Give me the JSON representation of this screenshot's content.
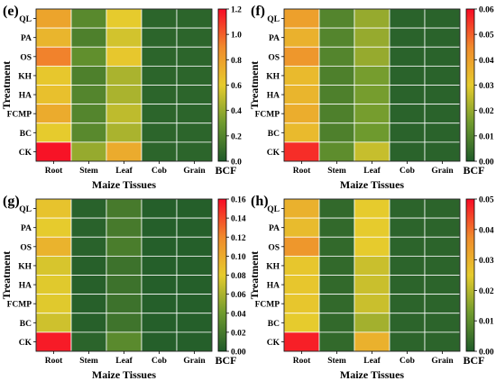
{
  "chart_data": [
    {
      "panel_label": "(e)",
      "type": "heatmap",
      "xlabel": "Maize Tissues",
      "ylabel": "Treatment",
      "x": [
        "Root",
        "Stem",
        "Leaf",
        "Cob",
        "Grain"
      ],
      "y": [
        "QL",
        "PA",
        "OS",
        "KH",
        "HA",
        "FCMP",
        "BC",
        "CK"
      ],
      "values": [
        [
          0.78,
          0.22,
          0.6,
          0.05,
          0.05
        ],
        [
          0.7,
          0.18,
          0.55,
          0.05,
          0.05
        ],
        [
          0.92,
          0.25,
          0.62,
          0.05,
          0.05
        ],
        [
          0.62,
          0.18,
          0.45,
          0.05,
          0.05
        ],
        [
          0.65,
          0.2,
          0.45,
          0.05,
          0.05
        ],
        [
          0.75,
          0.2,
          0.5,
          0.05,
          0.05
        ],
        [
          0.6,
          0.22,
          0.45,
          0.05,
          0.05
        ],
        [
          1.18,
          0.4,
          0.75,
          0.05,
          0.05
        ]
      ],
      "colorbar": {
        "label": "BCF",
        "min": 0.0,
        "max": 1.2,
        "ticks": [
          "0.0",
          "0.2",
          "0.4",
          "0.6",
          "0.8",
          "1.0",
          "1.2"
        ]
      }
    },
    {
      "panel_label": "(f)",
      "type": "heatmap",
      "xlabel": "Maize Tissues",
      "ylabel": "Treatment",
      "x": [
        "Root",
        "Stem",
        "Leaf",
        "Cob",
        "Grain"
      ],
      "y": [
        "QL",
        "PA",
        "OS",
        "KH",
        "HA",
        "FCMP",
        "BC",
        "CK"
      ],
      "values": [
        [
          0.04,
          0.01,
          0.02,
          0.002,
          0.002
        ],
        [
          0.036,
          0.01,
          0.02,
          0.002,
          0.002
        ],
        [
          0.042,
          0.01,
          0.02,
          0.002,
          0.002
        ],
        [
          0.034,
          0.009,
          0.016,
          0.002,
          0.002
        ],
        [
          0.035,
          0.009,
          0.016,
          0.002,
          0.002
        ],
        [
          0.037,
          0.009,
          0.016,
          0.002,
          0.002
        ],
        [
          0.034,
          0.009,
          0.015,
          0.002,
          0.002
        ],
        [
          0.056,
          0.012,
          0.026,
          0.002,
          0.002
        ]
      ],
      "colorbar": {
        "label": "BCF",
        "min": 0.0,
        "max": 0.06,
        "ticks": [
          "0.00",
          "0.01",
          "0.02",
          "0.03",
          "0.04",
          "0.05",
          "0.06"
        ]
      }
    },
    {
      "panel_label": "(g)",
      "type": "heatmap",
      "xlabel": "Maize Tissues",
      "ylabel": "Treatment",
      "x": [
        "Root",
        "Stem",
        "Leaf",
        "Cob",
        "Grain"
      ],
      "y": [
        "QL",
        "PA",
        "OS",
        "KH",
        "HA",
        "FCMP",
        "BC",
        "CK"
      ],
      "values": [
        [
          0.085,
          0.005,
          0.02,
          0.003,
          0.003
        ],
        [
          0.08,
          0.005,
          0.02,
          0.003,
          0.003
        ],
        [
          0.095,
          0.005,
          0.022,
          0.003,
          0.003
        ],
        [
          0.075,
          0.004,
          0.015,
          0.003,
          0.003
        ],
        [
          0.078,
          0.004,
          0.015,
          0.003,
          0.003
        ],
        [
          0.078,
          0.004,
          0.015,
          0.003,
          0.003
        ],
        [
          0.072,
          0.004,
          0.016,
          0.003,
          0.003
        ],
        [
          0.155,
          0.006,
          0.03,
          0.003,
          0.003
        ]
      ],
      "colorbar": {
        "label": "BCF",
        "min": 0.0,
        "max": 0.16,
        "ticks": [
          "0.00",
          "0.02",
          "0.04",
          "0.06",
          "0.08",
          "0.10",
          "0.12",
          "0.14",
          "0.16"
        ]
      }
    },
    {
      "panel_label": "(h)",
      "type": "heatmap",
      "xlabel": "Maize Tissues",
      "ylabel": "Treatment",
      "x": [
        "Root",
        "Stem",
        "Leaf",
        "Cob",
        "Grain"
      ],
      "y": [
        "QL",
        "PA",
        "OS",
        "KH",
        "HA",
        "FCMP",
        "BC",
        "CK"
      ],
      "values": [
        [
          0.03,
          0.003,
          0.025,
          0.002,
          0.002
        ],
        [
          0.028,
          0.003,
          0.025,
          0.002,
          0.002
        ],
        [
          0.035,
          0.003,
          0.025,
          0.002,
          0.002
        ],
        [
          0.026,
          0.003,
          0.022,
          0.002,
          0.002
        ],
        [
          0.026,
          0.003,
          0.022,
          0.002,
          0.002
        ],
        [
          0.026,
          0.003,
          0.022,
          0.002,
          0.002
        ],
        [
          0.025,
          0.003,
          0.018,
          0.002,
          0.002
        ],
        [
          0.048,
          0.003,
          0.03,
          0.002,
          0.002
        ]
      ],
      "colorbar": {
        "label": "BCF",
        "min": 0.0,
        "max": 0.05,
        "ticks": [
          "0.00",
          "0.01",
          "0.02",
          "0.03",
          "0.04",
          "0.05"
        ]
      }
    }
  ],
  "colors": {
    "scale_low": "#1f5a2a",
    "scale_mid_low": "#6e9a2e",
    "scale_mid": "#e6cb2d",
    "scale_mid_high": "#f08a2c",
    "scale_high": "#f80b26"
  }
}
